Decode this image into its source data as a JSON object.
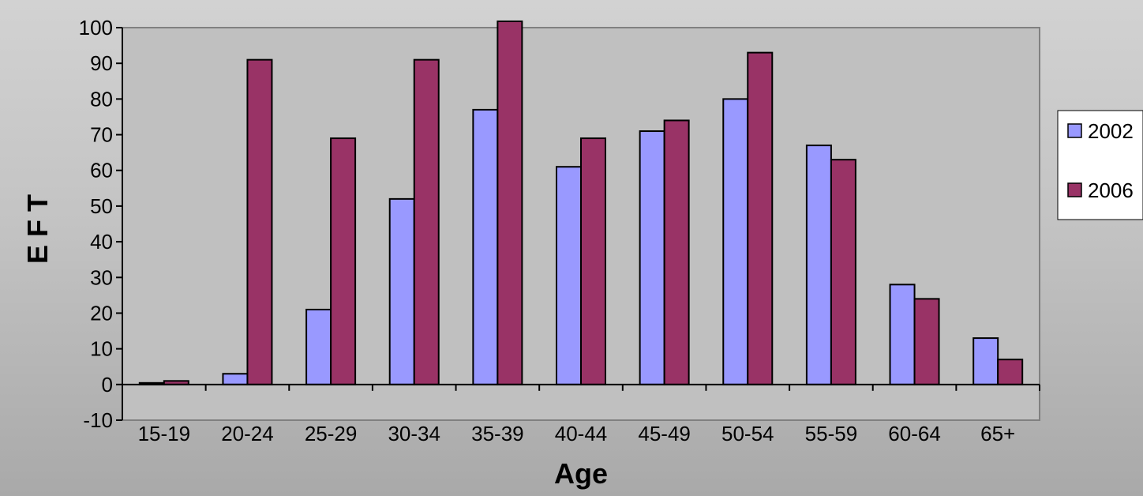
{
  "chart_data": {
    "type": "bar",
    "title": "",
    "xlabel": "Age",
    "ylabel": "E F T",
    "categories": [
      "15-19",
      "20-24",
      "25-29",
      "30-34",
      "35-39",
      "40-44",
      "45-49",
      "50-54",
      "55-59",
      "60-64",
      "65+"
    ],
    "series": [
      {
        "name": "2002",
        "color": "#9999ff",
        "values": [
          0,
          3,
          21,
          52,
          77,
          61,
          71,
          80,
          67,
          28,
          13
        ]
      },
      {
        "name": "2006",
        "color": "#993366",
        "values": [
          1,
          91,
          69,
          91,
          102,
          69,
          74,
          93,
          63,
          24,
          7
        ]
      }
    ],
    "ylim": [
      -10,
      100
    ],
    "yticks": [
      -10,
      0,
      10,
      20,
      30,
      40,
      50,
      60,
      70,
      80,
      90,
      100
    ],
    "grid": false,
    "legend_position": "right",
    "plot_background": "#c0c0c0"
  }
}
